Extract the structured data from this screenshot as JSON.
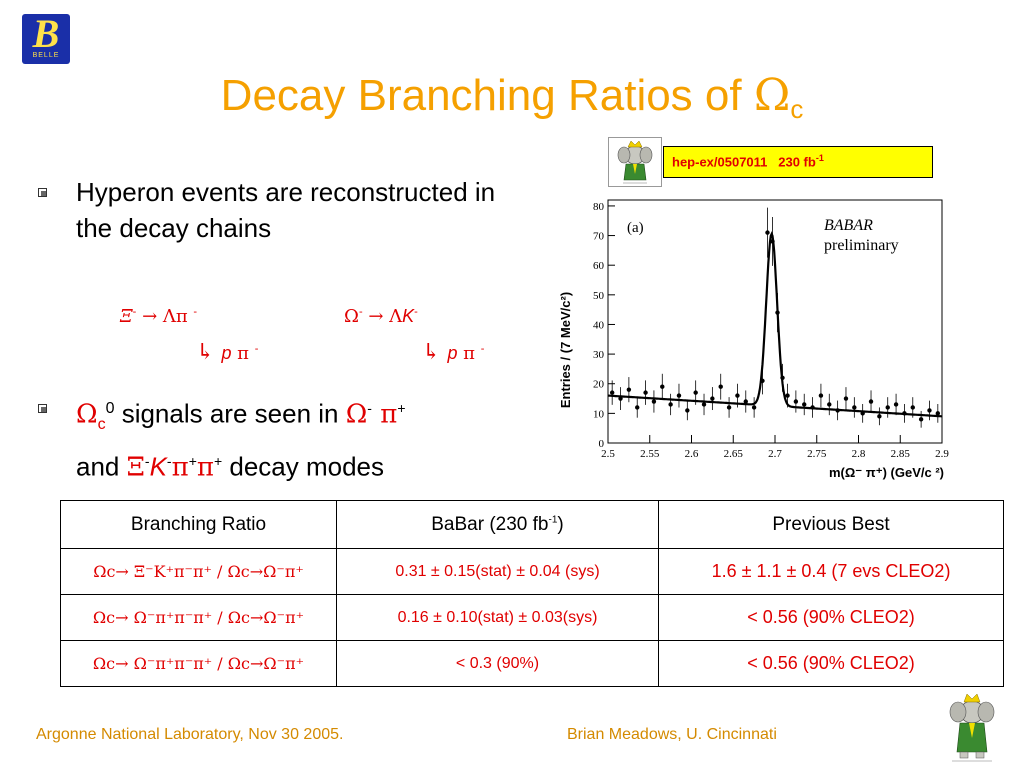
{
  "header": {
    "logo_letter": "B",
    "logo_text": "BELLE",
    "title_text": "Decay Branching Ratios of ",
    "title_symbol": "Ω",
    "title_sub": "c"
  },
  "reference": {
    "arxiv": "hep-ex/0507011",
    "lumi": "230 fb",
    "lumi_exp": "-1"
  },
  "bullets": {
    "b1": "Hyperon events are reconstructed in the decay chains",
    "b2_omega": "Ω",
    "b2_sub": "c",
    "b2_sup": "0",
    "b2_text": " signals are seen in ",
    "b2_mode1": "Ω",
    "b2_mode1_sup": "-",
    "b2_pi": " π",
    "b2_pi_sup": "+",
    "b2_and": "and ",
    "b2_mode2": "Ξ",
    "b2_mode2_sup": "-",
    "b2_k": "K",
    "b2_k_sup": "-",
    "b2_pipi": "π",
    "b2_pipi_sup1": "+",
    "b2_pipi2": "π",
    "b2_pipi_sup2": "+",
    "b2_tail": " decay modes"
  },
  "chains": {
    "xi_decay": "Ξ",
    "xi_sup": "-",
    "xi_arrow": " → Λπ ",
    "xi_pi_sup": "-",
    "omega_decay": "Ω",
    "omega_sup": "-",
    "omega_arrow": " → Λ",
    "omega_k": "K",
    "omega_k_sup": "-",
    "lambda_decay1": "↳ ",
    "lambda_p1": "p",
    "lambda_pi1": " π ",
    "lambda_pi1_sup": "-",
    "lambda_decay2": "↳ ",
    "lambda_p2": "p",
    "lambda_pi2": " π ",
    "lambda_pi2_sup": "-"
  },
  "table": {
    "headers": [
      "Branching Ratio",
      "BaBar (230 fb",
      "Previous Best"
    ],
    "header_babar_exp": "-1",
    "header_babar_close": ")",
    "rows": [
      {
        "mode": "Ωc→ Ξ⁻K⁺π⁻π⁺ / Ωc→Ω⁻π⁺",
        "babar": "0.31 ± 0.15(stat) ± 0.04 (sys)",
        "prev": "1.6 ± 1.1 ± 0.4  (7 evs CLEO2)"
      },
      {
        "mode": "Ωc→ Ω⁻π⁺π⁻π⁺ / Ωc→Ω⁻π⁺",
        "babar": "0.16 ± 0.10(stat) ± 0.03(sys)",
        "prev": "< 0.56 (90% CLEO2)"
      },
      {
        "mode": "Ωc→ Ω⁻π⁺π⁻π⁺ / Ωc→Ω⁻π⁺",
        "babar": "< 0.3  (90%)",
        "prev": "< 0.56 (90% CLEO2)"
      }
    ]
  },
  "plot": {
    "panel_label": "(a)",
    "experiment": "BABAR",
    "status": "preliminary",
    "ylabel": "Entries / (7 MeV/c²)",
    "xlabel": "m(Ω⁻ π⁺)  (GeV/c ²)",
    "x_ticks": [
      "2.5",
      "2.55",
      "2.6",
      "2.65",
      "2.7",
      "2.75",
      "2.8",
      "2.85",
      "2.9"
    ],
    "y_ticks": [
      "0",
      "10",
      "20",
      "30",
      "40",
      "50",
      "60",
      "70",
      "80"
    ]
  },
  "chart_data": {
    "type": "scatter",
    "xlim": [
      2.5,
      2.9
    ],
    "ylim": [
      0,
      82
    ],
    "points": [
      [
        2.505,
        17
      ],
      [
        2.515,
        15
      ],
      [
        2.525,
        18
      ],
      [
        2.535,
        12
      ],
      [
        2.545,
        17
      ],
      [
        2.555,
        14
      ],
      [
        2.565,
        19
      ],
      [
        2.575,
        13
      ],
      [
        2.585,
        16
      ],
      [
        2.595,
        11
      ],
      [
        2.605,
        17
      ],
      [
        2.615,
        13
      ],
      [
        2.625,
        15
      ],
      [
        2.635,
        19
      ],
      [
        2.645,
        12
      ],
      [
        2.655,
        16
      ],
      [
        2.665,
        14
      ],
      [
        2.675,
        12
      ],
      [
        2.685,
        21
      ],
      [
        2.691,
        71
      ],
      [
        2.697,
        68
      ],
      [
        2.703,
        44
      ],
      [
        2.709,
        22
      ],
      [
        2.715,
        16
      ],
      [
        2.725,
        14
      ],
      [
        2.735,
        13
      ],
      [
        2.745,
        12
      ],
      [
        2.755,
        16
      ],
      [
        2.765,
        13
      ],
      [
        2.775,
        11
      ],
      [
        2.785,
        15
      ],
      [
        2.795,
        12
      ],
      [
        2.805,
        10
      ],
      [
        2.815,
        14
      ],
      [
        2.825,
        9
      ],
      [
        2.835,
        12
      ],
      [
        2.845,
        13
      ],
      [
        2.855,
        10
      ],
      [
        2.865,
        12
      ],
      [
        2.875,
        8
      ],
      [
        2.885,
        11
      ],
      [
        2.895,
        10
      ]
    ]
  },
  "footer": {
    "left": "Argonne National Laboratory, Nov 30 2005.",
    "right": "Brian Meadows, U. Cincinnati"
  },
  "colors": {
    "title": "#f5a000",
    "accent_red": "#e00000",
    "ref_bg": "#ffff00",
    "footer": "#d48a00"
  },
  "icons": [
    "babar-elephant-icon",
    "belle-logo-icon"
  ]
}
